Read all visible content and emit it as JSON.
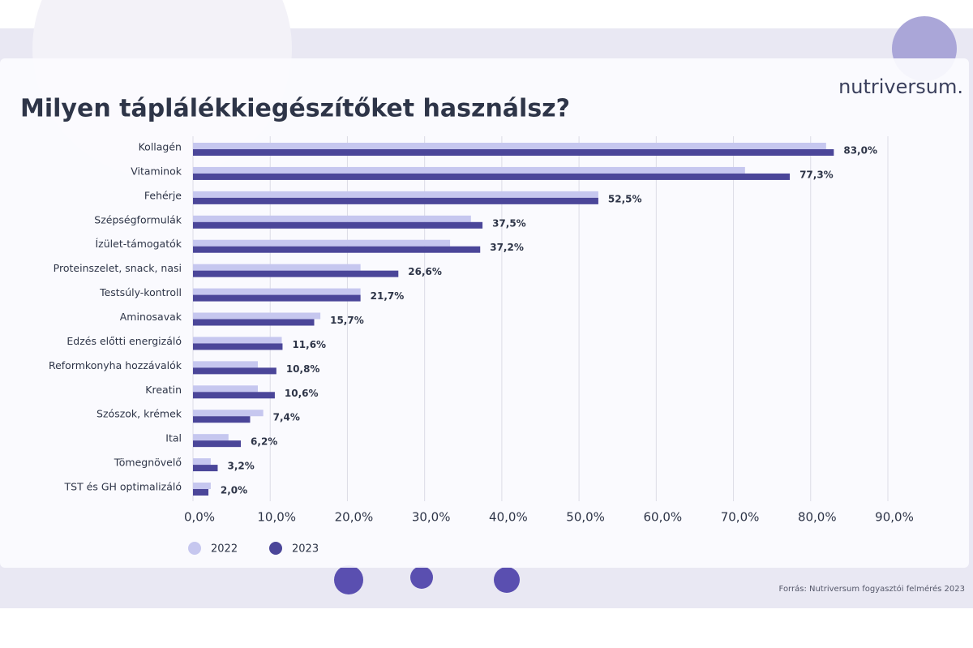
{
  "chart_data": {
    "type": "hbar",
    "title": "Milyen táplálékkiegészítőket használsz?",
    "brand": "nutriversum.",
    "source": "Forrás: Nutriversum fogyasztói felmérés 2023",
    "categories": [
      "Kollagén",
      "Vitaminok",
      "Fehérje",
      "Szépségformulák",
      "Ízület-támogatók",
      "Proteinszelet, snack, nasi",
      "Testsúly-kontroll",
      "Aminosavak",
      "Edzés előtti energizáló",
      "Reformkonyha hozzávalók",
      "Kreatin",
      "Szószok, krémek",
      "Ital",
      "Tömegnövelő",
      "TST és GH optimalizáló"
    ],
    "series": [
      {
        "name": "2022",
        "color": "#c6c7ef",
        "values": [
          82,
          71.5,
          52.5,
          36,
          33.3,
          21.7,
          21.7,
          16.5,
          11.5,
          8.4,
          8.4,
          9.1,
          4.6,
          2.3,
          2.3
        ]
      },
      {
        "name": "2023",
        "color": "#4b4699",
        "values": [
          83,
          77.3,
          52.5,
          37.5,
          37.2,
          26.6,
          21.7,
          15.7,
          11.6,
          10.8,
          10.6,
          7.4,
          6.2,
          3.2,
          2.0
        ],
        "value_labels": [
          "83,0%",
          "77,3%",
          "52,5%",
          "37,5%",
          "37,2%",
          "26,6%",
          "21,7%",
          "15,7%",
          "11,6%",
          "10,8%",
          "10,6%",
          "7,4%",
          "6,2%",
          "3,2%",
          "2,0%"
        ]
      }
    ],
    "xlim": [
      0,
      90
    ],
    "xticks": [
      {
        "value": 0,
        "label": "0,0%"
      },
      {
        "value": 10,
        "label": "10,0%"
      },
      {
        "value": 20,
        "label": "20,0%"
      },
      {
        "value": 30,
        "label": "30,0%"
      },
      {
        "value": 40,
        "label": "40,0%"
      },
      {
        "value": 50,
        "label": "50,0%"
      },
      {
        "value": 60,
        "label": "60,0%"
      },
      {
        "value": 70,
        "label": "70,0%"
      },
      {
        "value": 80,
        "label": "80,0%"
      },
      {
        "value": 90,
        "label": "90,0%"
      }
    ],
    "grid": true
  }
}
